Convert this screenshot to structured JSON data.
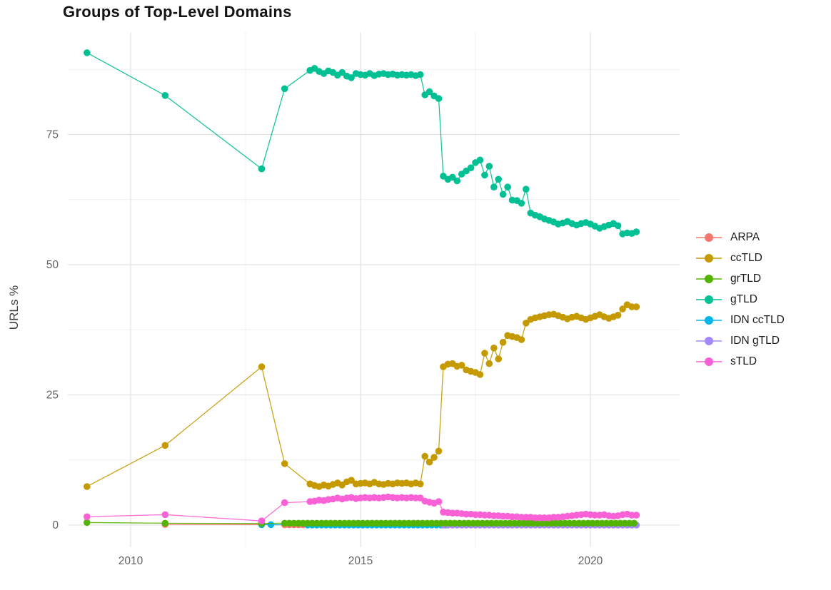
{
  "page": {
    "title": "Groups of Top-Level Domains",
    "y_axis_label": "URLs %"
  },
  "legend": {
    "items": [
      {
        "label": "ARPA",
        "color": "#F8766D"
      },
      {
        "label": "ccTLD",
        "color": "#C49A00"
      },
      {
        "label": "grTLD",
        "color": "#53B400"
      },
      {
        "label": "gTLD",
        "color": "#00C094"
      },
      {
        "label": "IDN ccTLD",
        "color": "#00B6EB"
      },
      {
        "label": "IDN gTLD",
        "color": "#A58AFF"
      },
      {
        "label": "sTLD",
        "color": "#FB61D7"
      }
    ]
  },
  "chart_data": {
    "type": "line",
    "title": "Groups of Top-Level Domains",
    "xlabel": "",
    "ylabel": "URLs %",
    "xlim": [
      2008.6,
      2021.95
    ],
    "ylim": [
      -4.3,
      94.7
    ],
    "grid": true,
    "legend_position": "right",
    "x_ticks": [
      2010,
      2015,
      2020
    ],
    "x_minor_gridlines": [
      2012.5,
      2017.5
    ],
    "y_ticks": [
      0,
      25,
      50,
      75
    ],
    "y_minor_gridlines": [
      12.5,
      37.5,
      62.5,
      87.5
    ],
    "series": [
      {
        "name": "ARPA",
        "color": "#F8766D",
        "segments": [
          {
            "points": [
              [
                2010.75,
                0.12
              ],
              [
                2012.85,
                0.1
              ]
            ]
          },
          {
            "x0": 2013.35,
            "x1": 2014.85,
            "step": 0.1,
            "y": 0.06
          }
        ]
      },
      {
        "name": "IDN ccTLD",
        "color": "#00B6EB",
        "segments": [
          {
            "points": [
              [
                2012.85,
                0.1
              ],
              [
                2013.05,
                0.08
              ]
            ]
          },
          {
            "x0": 2013.85,
            "x1": 2016.85,
            "step": 0.1,
            "y": 0.02
          }
        ]
      },
      {
        "name": "IDN gTLD",
        "color": "#A58AFF",
        "segments": [
          {
            "x0": 2016.8,
            "x1": 2021.0,
            "step": 0.1,
            "y": 0.0
          }
        ]
      },
      {
        "name": "ccTLD",
        "color": "#C49A00",
        "segments": [
          {
            "points": [
              [
                2009.05,
                7.4
              ],
              [
                2010.75,
                15.3
              ],
              [
                2012.85,
                30.4
              ],
              [
                2013.35,
                11.8
              ]
            ]
          },
          {
            "x0": 2013.9,
            "step": 0.1,
            "values": [
              7.9,
              7.6,
              7.4,
              7.7,
              7.5,
              7.8,
              8.1,
              7.7,
              8.3,
              8.6,
              7.9,
              8.0,
              8.1,
              7.9,
              8.2,
              7.9,
              7.8,
              8.0,
              7.9,
              8.1,
              8.0,
              8.1,
              7.9,
              8.1,
              7.9
            ]
          },
          {
            "x0": 2016.4,
            "step": 0.1,
            "values": [
              13.2,
              12.1,
              13.0,
              14.2
            ]
          },
          {
            "x0": 2016.8,
            "step": 0.1,
            "values": [
              30.4,
              30.9,
              31.0,
              30.5,
              30.7,
              29.8,
              29.5,
              29.3,
              28.9,
              33.0,
              31.0,
              34.0,
              31.9,
              35.1,
              36.4,
              36.2,
              36.0,
              35.6,
              38.8,
              39.5,
              39.8,
              40.0,
              40.2,
              40.4,
              40.5,
              40.2,
              39.9,
              39.6,
              39.9,
              40.1,
              39.8,
              39.5,
              39.8,
              40.1,
              40.4,
              40.0,
              39.7,
              40.0,
              40.3,
              41.5,
              42.3,
              41.9,
              41.9
            ]
          }
        ]
      },
      {
        "name": "grTLD",
        "color": "#53B400",
        "segments": [
          {
            "points": [
              [
                2009.05,
                0.5
              ],
              [
                2010.75,
                0.35
              ],
              [
                2012.85,
                0.3
              ]
            ]
          },
          {
            "x0": 2013.35,
            "x1": 2021.0,
            "step": 0.1,
            "y": 0.35
          }
        ]
      },
      {
        "name": "gTLD",
        "color": "#00C094",
        "segments": [
          {
            "points": [
              [
                2009.05,
                90.7
              ],
              [
                2010.75,
                82.5
              ],
              [
                2012.85,
                68.4
              ],
              [
                2013.35,
                83.8
              ]
            ]
          },
          {
            "x0": 2013.9,
            "step": 0.1,
            "values": [
              87.3,
              87.7,
              87.1,
              86.7,
              87.2,
              86.9,
              86.4,
              86.9,
              86.2,
              85.9,
              86.7,
              86.5,
              86.4,
              86.7,
              86.3,
              86.6,
              86.7,
              86.5,
              86.6,
              86.4,
              86.5,
              86.4,
              86.5,
              86.3,
              86.5
            ]
          },
          {
            "x0": 2016.4,
            "step": 0.1,
            "values": [
              82.6,
              83.2,
              82.4,
              81.9
            ]
          },
          {
            "x0": 2016.8,
            "step": 0.1,
            "values": [
              67.0,
              66.4,
              66.8,
              66.1,
              67.4,
              68.0,
              68.6,
              69.6,
              70.1,
              67.2,
              68.9,
              64.9,
              66.4,
              63.5,
              64.9,
              62.4,
              62.3,
              61.8,
              64.5,
              59.9,
              59.5,
              59.2,
              58.8,
              58.5,
              58.2,
              57.8,
              58.0,
              58.3,
              57.9,
              57.6,
              57.9,
              58.1,
              57.8,
              57.4,
              57.0,
              57.3,
              57.6,
              57.9,
              57.5,
              55.9,
              56.1,
              56.0,
              56.3
            ]
          }
        ]
      },
      {
        "name": "sTLD",
        "color": "#FB61D7",
        "segments": [
          {
            "points": [
              [
                2009.05,
                1.6
              ],
              [
                2010.75,
                2.0
              ],
              [
                2012.85,
                0.8
              ],
              [
                2013.35,
                4.3
              ]
            ]
          },
          {
            "x0": 2013.9,
            "step": 0.1,
            "values": [
              4.5,
              4.6,
              4.8,
              4.7,
              4.9,
              5.0,
              5.2,
              5.0,
              5.2,
              5.3,
              5.1,
              5.2,
              5.3,
              5.2,
              5.3,
              5.2,
              5.3,
              5.4,
              5.3,
              5.2,
              5.3,
              5.2,
              5.3,
              5.2,
              5.2
            ]
          },
          {
            "x0": 2016.4,
            "step": 0.1,
            "values": [
              4.6,
              4.4,
              4.2,
              4.5
            ]
          },
          {
            "x0": 2016.8,
            "step": 0.1,
            "values": [
              2.5,
              2.4,
              2.3,
              2.3,
              2.2,
              2.1,
              2.1,
              2.0,
              2.0,
              1.9,
              1.9,
              1.8,
              1.8,
              1.7,
              1.7,
              1.6,
              1.6,
              1.5,
              1.5,
              1.5,
              1.4,
              1.4,
              1.4,
              1.4,
              1.5,
              1.5,
              1.6,
              1.7,
              1.8,
              1.9,
              2.0,
              2.1,
              2.0,
              1.9,
              1.9,
              2.0,
              1.8,
              1.7,
              1.8,
              2.0,
              2.1,
              1.9,
              1.9
            ]
          }
        ]
      }
    ]
  }
}
